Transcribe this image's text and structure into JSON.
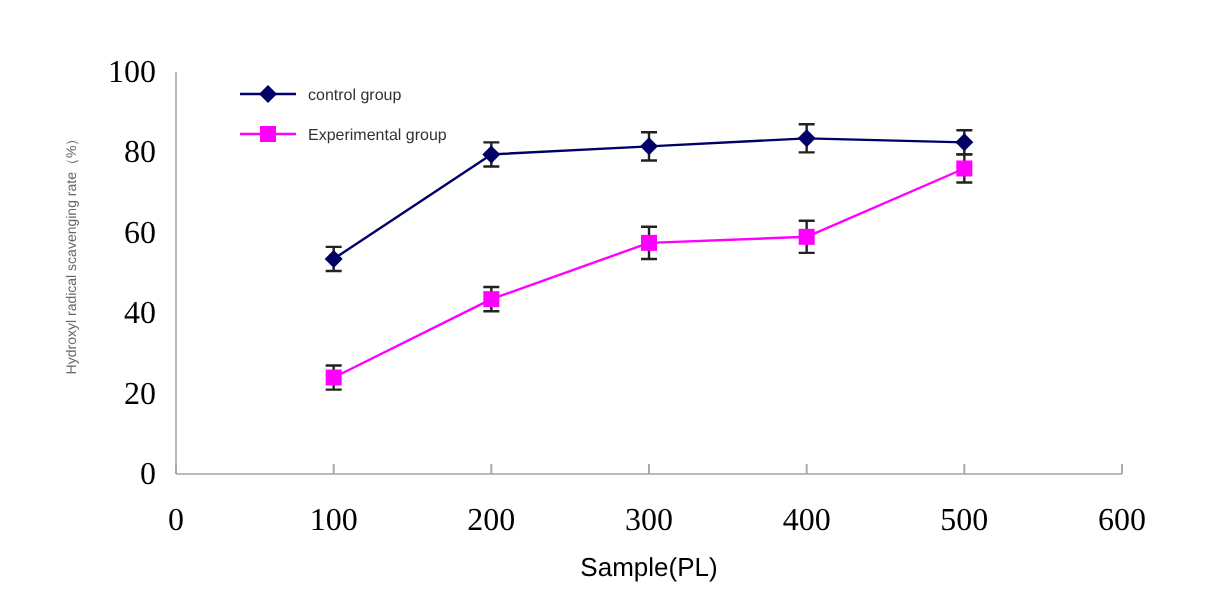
{
  "chart_data": {
    "type": "line",
    "xlabel": "Sample(PL)",
    "ylabel": "Hydroxyl radical scavenging rate（%）",
    "x": [
      100,
      200,
      300,
      400,
      500
    ],
    "xlim": [
      0,
      600
    ],
    "xticks": [
      0,
      100,
      200,
      300,
      400,
      500,
      600
    ],
    "ylim": [
      0,
      100
    ],
    "yticks": [
      0,
      20,
      40,
      60,
      80,
      100
    ],
    "grid": false,
    "legend": "top left",
    "series": [
      {
        "name": "control group",
        "color": "#000066",
        "marker": "diamond",
        "values": [
          53.5,
          79.5,
          81.5,
          83.5,
          82.5
        ],
        "errors": [
          3,
          3,
          3.5,
          3.5,
          3
        ]
      },
      {
        "name": "Experimental group",
        "color": "#ff00ff",
        "marker": "square",
        "values": [
          24,
          43.5,
          57.5,
          59,
          76
        ],
        "errors": [
          3,
          3,
          4,
          4,
          3.5
        ]
      }
    ]
  }
}
